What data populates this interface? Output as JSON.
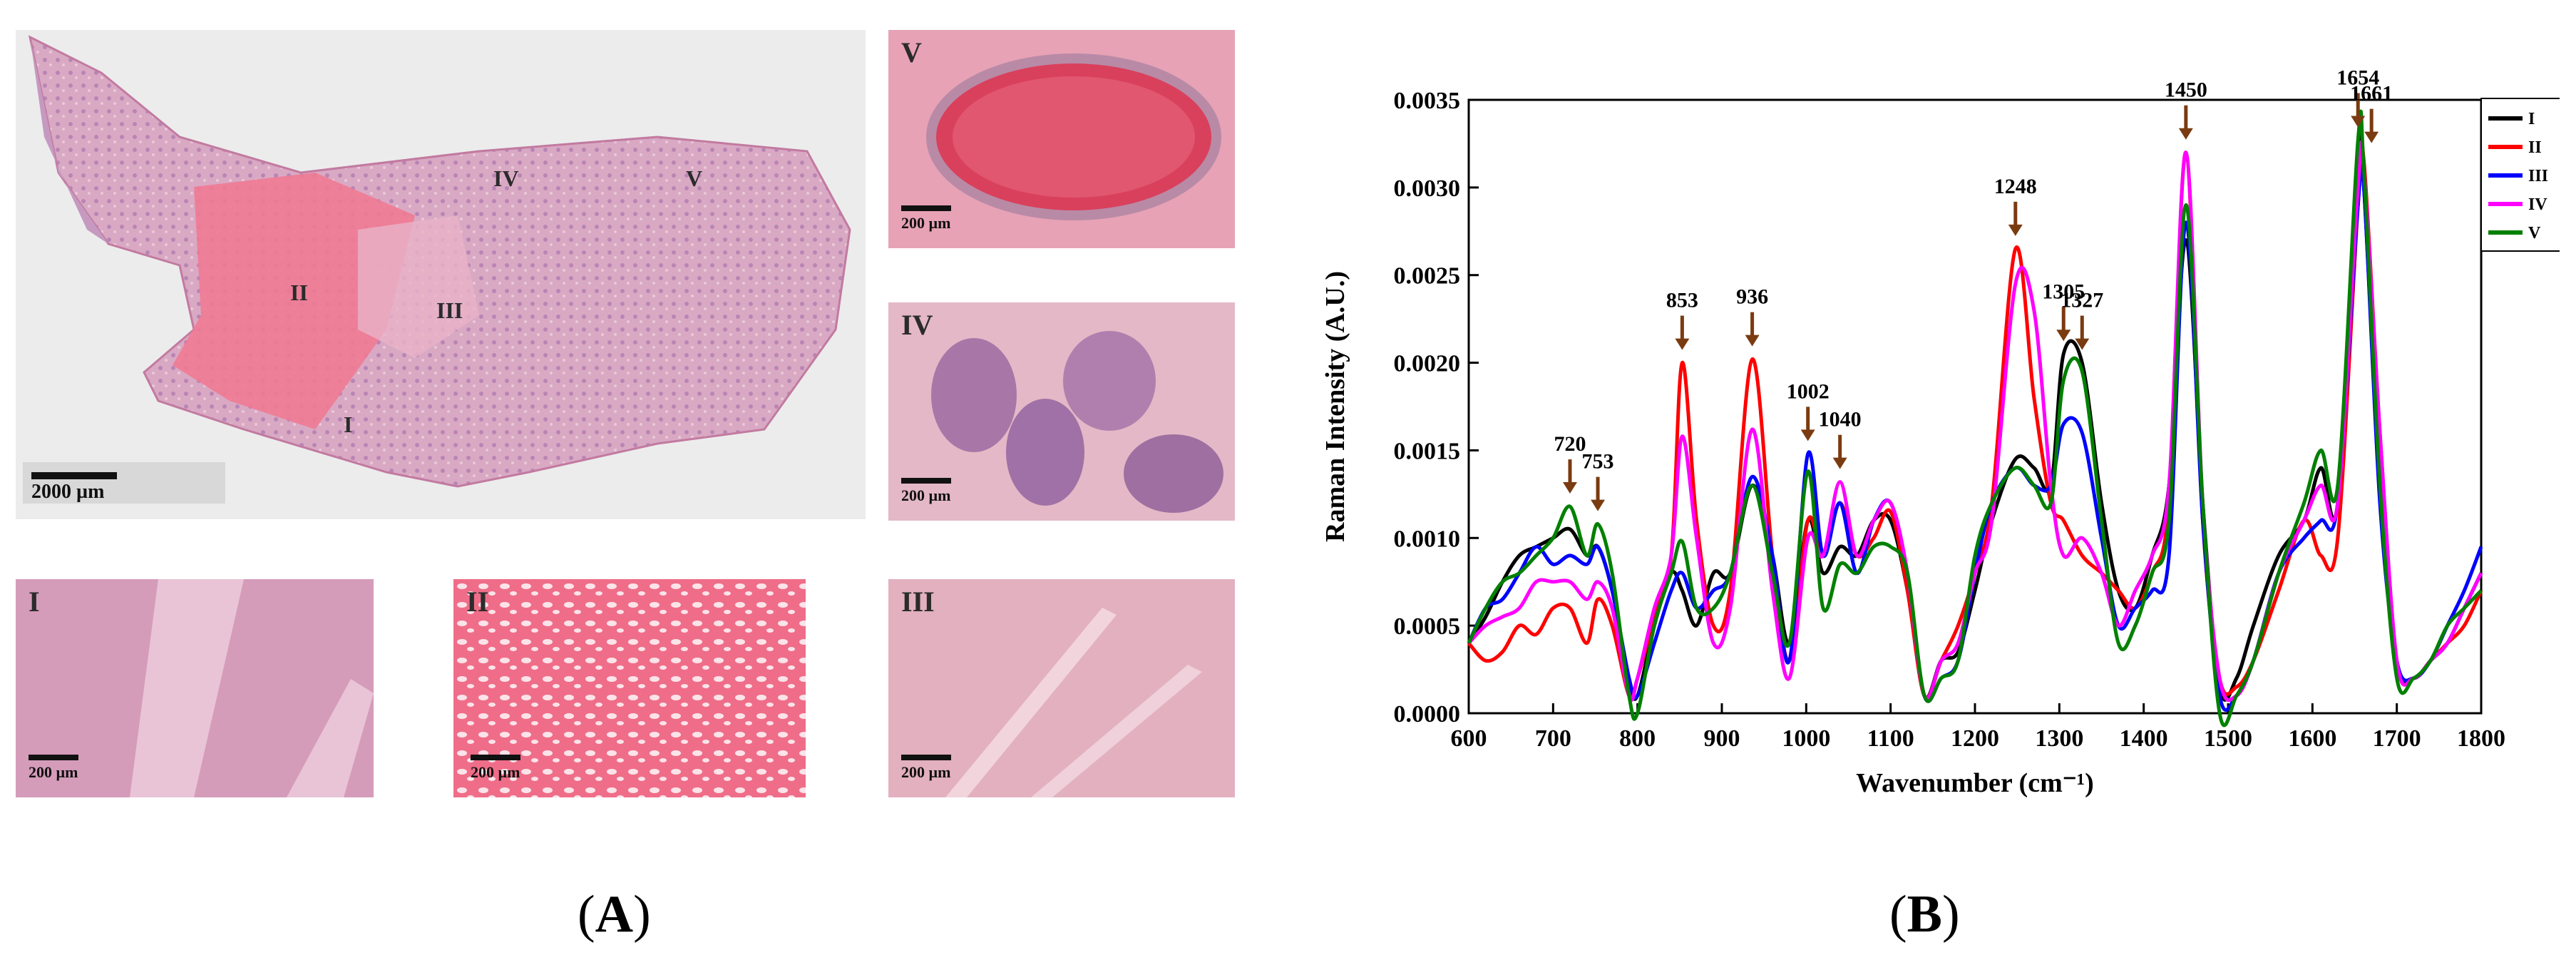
{
  "panel_a": {
    "overview": {
      "region_labels": [
        "II",
        "III",
        "IV",
        "V",
        "I"
      ],
      "scale_text": "2000 µm"
    },
    "tiles": [
      {
        "id": "V",
        "label": "V",
        "scale_text": "200 µm"
      },
      {
        "id": "IV",
        "label": "IV",
        "scale_text": "200 µm"
      },
      {
        "id": "I",
        "label": "I",
        "scale_text": "200 µm"
      },
      {
        "id": "II",
        "label": "II",
        "scale_text": "200 µm"
      },
      {
        "id": "III",
        "label": "III",
        "scale_text": "200 µm"
      }
    ],
    "caption_letter": "A"
  },
  "panel_b": {
    "caption_letter": "B"
  },
  "chart_data": {
    "type": "line",
    "title": "",
    "xlabel": "Wavenumber (cm⁻¹)",
    "ylabel": "Raman Intensity (A.U.)",
    "xlim": [
      600,
      1800
    ],
    "ylim": [
      0,
      0.0035
    ],
    "xticks": [
      "600",
      "700",
      "800",
      "900",
      "1000",
      "1100",
      "1200",
      "1300",
      "1400",
      "1500",
      "1600",
      "1700",
      "1800"
    ],
    "yticks": [
      "0.0000",
      "0.0005",
      "0.0010",
      "0.0015",
      "0.0020",
      "0.0025",
      "0.0030",
      "0.0035"
    ],
    "grid": false,
    "legend_position": "top-right",
    "x": [
      600,
      620,
      640,
      660,
      680,
      700,
      720,
      740,
      753,
      770,
      790,
      800,
      820,
      840,
      853,
      870,
      890,
      910,
      936,
      960,
      980,
      1002,
      1020,
      1040,
      1060,
      1080,
      1100,
      1120,
      1140,
      1160,
      1180,
      1200,
      1220,
      1248,
      1270,
      1290,
      1305,
      1327,
      1350,
      1370,
      1390,
      1410,
      1430,
      1450,
      1470,
      1490,
      1510,
      1530,
      1560,
      1590,
      1610,
      1630,
      1654,
      1661,
      1680,
      1700,
      1720,
      1740,
      1760,
      1780,
      1800
    ],
    "series": [
      {
        "name": "I",
        "color": "#000000",
        "values": [
          0.0004,
          0.00055,
          0.00075,
          0.0009,
          0.00095,
          0.001,
          0.00105,
          0.0009,
          0.00095,
          0.0007,
          0.0002,
          0.0001,
          0.0005,
          0.0008,
          0.0007,
          0.0005,
          0.0008,
          0.0008,
          0.0013,
          0.0009,
          0.0004,
          0.0011,
          0.0008,
          0.00095,
          0.0009,
          0.0011,
          0.0011,
          0.0007,
          0.0001,
          0.0003,
          0.00035,
          0.0007,
          0.0011,
          0.00145,
          0.0014,
          0.0013,
          0.00205,
          0.002,
          0.0012,
          0.0007,
          0.0006,
          0.0009,
          0.0013,
          0.0027,
          0.0012,
          0.00015,
          0.0002,
          0.0005,
          0.0009,
          0.0011,
          0.0014,
          0.0012,
          0.0032,
          0.003,
          0.0013,
          0.0003,
          0.0002,
          0.0003,
          0.0004,
          0.0006,
          0.0008
        ]
      },
      {
        "name": "II",
        "color": "#ff0000",
        "values": [
          0.0004,
          0.0003,
          0.00035,
          0.0005,
          0.00045,
          0.0006,
          0.0006,
          0.0004,
          0.00065,
          0.0005,
          0.0001,
          0.0002,
          0.00055,
          0.0009,
          0.002,
          0.0011,
          0.0005,
          0.0007,
          0.00202,
          0.0009,
          0.0003,
          0.0011,
          0.0009,
          0.0012,
          0.0009,
          0.001,
          0.00115,
          0.0007,
          0.0001,
          0.0003,
          0.0005,
          0.0008,
          0.0012,
          0.00265,
          0.0018,
          0.0012,
          0.0011,
          0.0009,
          0.0008,
          0.0007,
          0.0006,
          0.0008,
          0.0012,
          0.0032,
          0.0011,
          0.0002,
          0.00015,
          0.0003,
          0.0007,
          0.0011,
          0.0009,
          0.001,
          0.0029,
          0.00315,
          0.0016,
          0.0003,
          0.0002,
          0.0003,
          0.0004,
          0.0005,
          0.0007
        ]
      },
      {
        "name": "III",
        "color": "#0000ff",
        "values": [
          0.0004,
          0.0006,
          0.00065,
          0.0008,
          0.00095,
          0.00085,
          0.0009,
          0.00085,
          0.00095,
          0.0007,
          0.0002,
          0.0001,
          0.0004,
          0.0007,
          0.0008,
          0.0006,
          0.0007,
          0.0008,
          0.00135,
          0.0009,
          0.0003,
          0.00148,
          0.0009,
          0.0012,
          0.0008,
          0.0011,
          0.0012,
          0.0008,
          0.0001,
          0.0002,
          0.0003,
          0.0008,
          0.0012,
          0.0014,
          0.0013,
          0.0013,
          0.00165,
          0.0016,
          0.001,
          0.0005,
          0.0006,
          0.0007,
          0.0009,
          0.0028,
          0.0011,
          0.0001,
          0.0001,
          0.0003,
          0.0008,
          0.001,
          0.0011,
          0.0012,
          0.0029,
          0.003,
          0.0012,
          0.0003,
          0.0002,
          0.0003,
          0.0005,
          0.0007,
          0.00095
        ]
      },
      {
        "name": "IV",
        "color": "#ff00ff",
        "values": [
          0.0004,
          0.0005,
          0.00055,
          0.0006,
          0.00075,
          0.00075,
          0.00075,
          0.00065,
          0.00075,
          0.0006,
          0.0001,
          0.0002,
          0.0006,
          0.0009,
          0.00158,
          0.001,
          0.0004,
          0.0006,
          0.00162,
          0.0007,
          0.0002,
          0.001,
          0.0009,
          0.00132,
          0.0009,
          0.0011,
          0.0012,
          0.0008,
          0.0001,
          0.0003,
          0.0004,
          0.0008,
          0.0011,
          0.00245,
          0.0023,
          0.0013,
          0.0009,
          0.001,
          0.0008,
          0.0005,
          0.0007,
          0.0009,
          0.0013,
          0.0032,
          0.0012,
          0.0002,
          0.0001,
          0.0003,
          0.0008,
          0.0011,
          0.0013,
          0.0012,
          0.003,
          0.0031,
          0.0016,
          0.0003,
          0.0002,
          0.0003,
          0.0004,
          0.0006,
          0.0008
        ]
      },
      {
        "name": "V",
        "color": "#008000",
        "values": [
          0.0004,
          0.0006,
          0.00075,
          0.0008,
          0.0009,
          0.001,
          0.00118,
          0.0009,
          0.00108,
          0.0008,
          0.0001,
          0.0,
          0.0005,
          0.0008,
          0.00098,
          0.0006,
          0.0006,
          0.0008,
          0.0013,
          0.0008,
          0.0004,
          0.00138,
          0.0006,
          0.00085,
          0.0008,
          0.00095,
          0.00095,
          0.0008,
          0.0001,
          0.0002,
          0.0003,
          0.0009,
          0.0012,
          0.0014,
          0.0013,
          0.0012,
          0.0019,
          0.00195,
          0.0011,
          0.0004,
          0.0005,
          0.0008,
          0.0011,
          0.0029,
          0.0012,
          0.0,
          0.0001,
          0.0003,
          0.0008,
          0.0012,
          0.0015,
          0.0013,
          0.00327,
          0.0031,
          0.0013,
          0.0002,
          0.0002,
          0.0003,
          0.0005,
          0.0006,
          0.0007
        ]
      }
    ],
    "annotations": [
      {
        "label": "720",
        "x": 720,
        "y": 0.00118
      },
      {
        "label": "753",
        "x": 753,
        "y": 0.00108
      },
      {
        "label": "853",
        "x": 853,
        "y": 0.002
      },
      {
        "label": "936",
        "x": 936,
        "y": 0.00202
      },
      {
        "label": "1002",
        "x": 1002,
        "y": 0.00148
      },
      {
        "label": "1040",
        "x": 1040,
        "y": 0.00132
      },
      {
        "label": "1248",
        "x": 1248,
        "y": 0.00265
      },
      {
        "label": "1305",
        "x": 1305,
        "y": 0.00205
      },
      {
        "label": "1327",
        "x": 1327,
        "y": 0.002
      },
      {
        "label": "1450",
        "x": 1450,
        "y": 0.0032
      },
      {
        "label": "1654",
        "x": 1654,
        "y": 0.00327
      },
      {
        "label": "1661",
        "x": 1670,
        "y": 0.00318
      }
    ],
    "arrow_color": "#7a3b10"
  }
}
